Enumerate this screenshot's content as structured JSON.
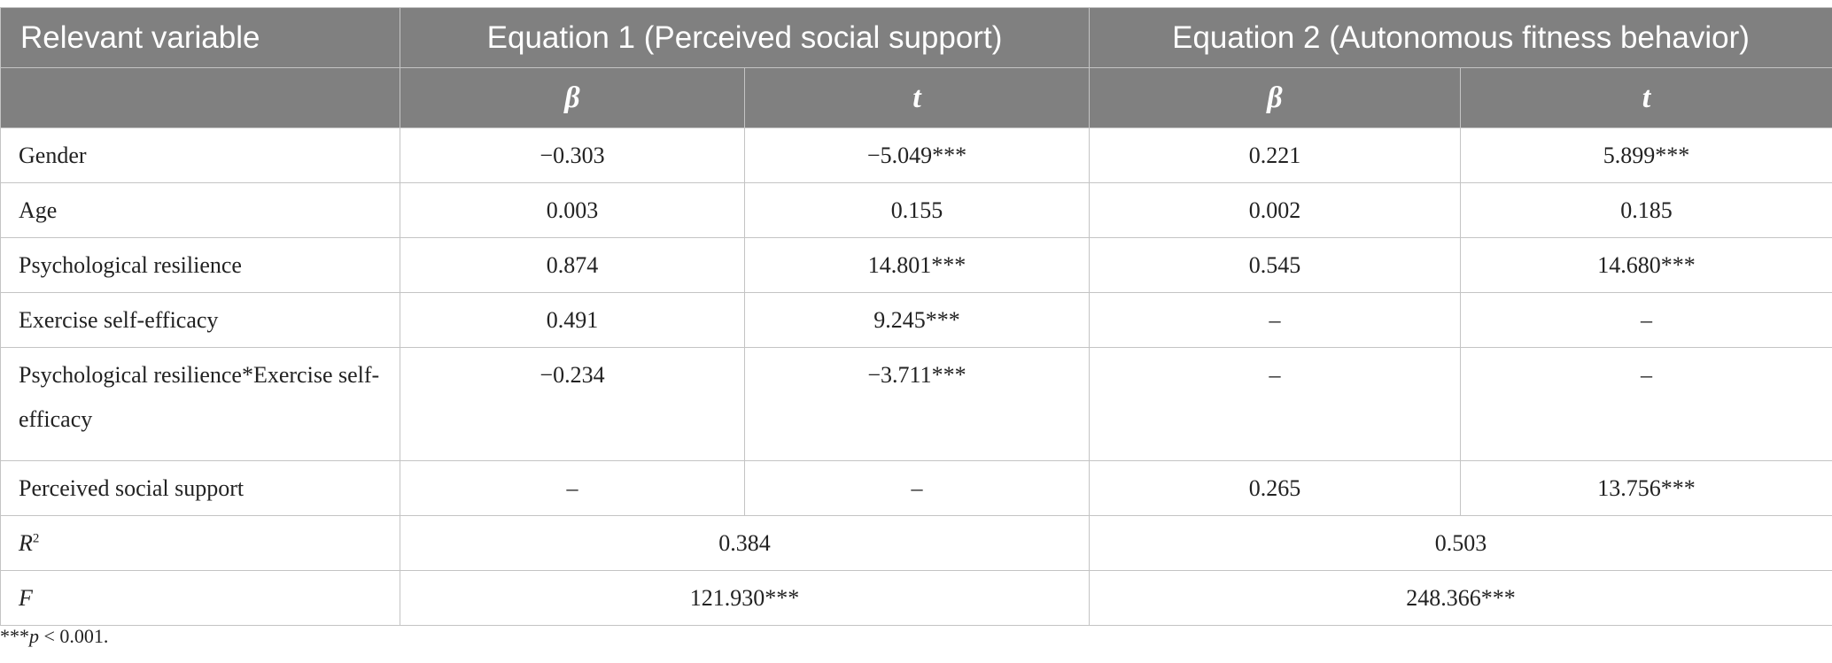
{
  "table": {
    "header": {
      "variable": "Relevant variable",
      "eq1": "Equation 1 (Perceived social support)",
      "eq2": "Equation 2 (Autonomous fitness behavior)",
      "beta": "β",
      "t": "t"
    },
    "rows": [
      {
        "label": "Gender",
        "b1": "−0.303",
        "t1": "−5.049***",
        "b2": "0.221",
        "t2": "5.899***"
      },
      {
        "label": "Age",
        "b1": "0.003",
        "t1": "0.155",
        "b2": "0.002",
        "t2": "0.185"
      },
      {
        "label": "Psychological resilience",
        "b1": "0.874",
        "t1": "14.801***",
        "b2": "0.545",
        "t2": "14.680***"
      },
      {
        "label": "Exercise self-efficacy",
        "b1": "0.491",
        "t1": "9.245***",
        "b2": "–",
        "t2": "–"
      },
      {
        "label": "Psychological resilience*Exercise self-efficacy",
        "b1": "−0.234",
        "t1": "−3.711***",
        "b2": "–",
        "t2": "–"
      },
      {
        "label": "Perceived social support",
        "b1": "–",
        "t1": "–",
        "b2": "0.265",
        "t2": "13.756***"
      }
    ],
    "r2": {
      "label": "R",
      "sup": "2",
      "eq1": "0.384",
      "eq2": "0.503"
    },
    "f": {
      "label": "F",
      "eq1": "121.930***",
      "eq2": "248.366***"
    }
  },
  "footnote": {
    "stars": "***",
    "p": "p",
    "text": " < 0.001."
  }
}
